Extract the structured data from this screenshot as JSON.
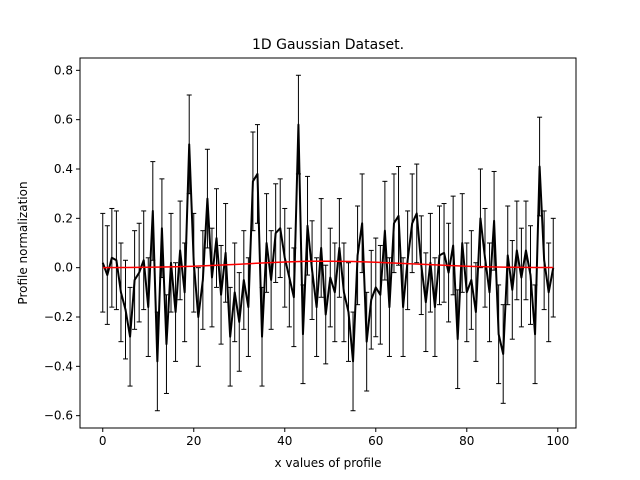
{
  "chart_data": {
    "type": "line",
    "title": "1D Gaussian Dataset.",
    "xlabel": "x values of profile",
    "ylabel": "Profile normalization",
    "xlim": [
      -5,
      104
    ],
    "ylim": [
      -0.65,
      0.85
    ],
    "xticks": [
      0,
      20,
      40,
      60,
      80,
      100
    ],
    "yticks": [
      -0.6,
      -0.4,
      -0.2,
      0.0,
      0.2,
      0.4,
      0.6,
      0.8
    ],
    "xtick_labels": [
      "0",
      "20",
      "40",
      "60",
      "80",
      "100"
    ],
    "ytick_labels": [
      "−0.6",
      "−0.4",
      "−0.2",
      "0.0",
      "0.2",
      "0.4",
      "0.6",
      "0.8"
    ],
    "grid": false,
    "colors": {
      "data": "#000000",
      "model": "#ff0000",
      "errorbar": "#000000"
    },
    "error": 0.2,
    "series": [
      {
        "role": "data",
        "x": [
          0,
          1,
          2,
          3,
          4,
          5,
          6,
          7,
          8,
          9,
          10,
          11,
          12,
          13,
          14,
          15,
          16,
          17,
          18,
          19,
          20,
          21,
          22,
          23,
          24,
          25,
          26,
          27,
          28,
          29,
          30,
          31,
          32,
          33,
          34,
          35,
          36,
          37,
          38,
          39,
          40,
          41,
          42,
          43,
          44,
          45,
          46,
          47,
          48,
          49,
          50,
          51,
          52,
          53,
          54,
          55,
          56,
          57,
          58,
          59,
          60,
          61,
          62,
          63,
          64,
          65,
          66,
          67,
          68,
          69,
          70,
          71,
          72,
          73,
          74,
          75,
          76,
          77,
          78,
          79,
          80,
          81,
          82,
          83,
          84,
          85,
          86,
          87,
          88,
          89,
          90,
          91,
          92,
          93,
          94,
          95,
          96,
          97,
          98,
          99
        ],
        "y": [
          0.02,
          -0.03,
          0.04,
          0.03,
          -0.1,
          -0.17,
          -0.28,
          -0.05,
          -0.02,
          0.03,
          -0.16,
          0.23,
          -0.38,
          0.16,
          -0.31,
          0.02,
          -0.18,
          0.07,
          -0.1,
          0.5,
          0.02,
          -0.2,
          -0.05,
          0.28,
          -0.04,
          0.12,
          -0.11,
          0.06,
          -0.28,
          -0.1,
          -0.22,
          -0.05,
          -0.16,
          0.35,
          0.38,
          -0.28,
          0.1,
          -0.05,
          0.14,
          0.16,
          0.04,
          -0.04,
          -0.12,
          0.58,
          -0.27,
          0.17,
          -0.01,
          -0.16,
          0.08,
          -0.19,
          -0.04,
          -0.1,
          0.08,
          -0.1,
          -0.18,
          -0.38,
          0.05,
          0.18,
          -0.3,
          -0.13,
          -0.08,
          -0.11,
          0.15,
          -0.16,
          0.18,
          0.21,
          -0.16,
          0.03,
          0.18,
          0.22,
          0.01,
          -0.14,
          0.02,
          -0.16,
          0.05,
          0.06,
          -0.02,
          0.09,
          -0.29,
          0.1,
          -0.1,
          -0.05,
          -0.18,
          0.2,
          0.04,
          -0.1,
          0.19,
          -0.27,
          -0.35,
          0.05,
          -0.09,
          0.07,
          -0.04,
          0.07,
          -0.03,
          -0.27,
          0.41,
          0.03,
          -0.1,
          0.0
        ],
        "error": [
          0.2,
          0.2,
          0.2,
          0.2,
          0.2,
          0.2,
          0.2,
          0.2,
          0.2,
          0.2,
          0.2,
          0.2,
          0.2,
          0.2,
          0.2,
          0.2,
          0.2,
          0.2,
          0.2,
          0.2,
          0.2,
          0.2,
          0.2,
          0.2,
          0.2,
          0.2,
          0.2,
          0.2,
          0.2,
          0.2,
          0.2,
          0.2,
          0.2,
          0.2,
          0.2,
          0.2,
          0.2,
          0.2,
          0.2,
          0.2,
          0.2,
          0.2,
          0.2,
          0.2,
          0.2,
          0.2,
          0.2,
          0.2,
          0.2,
          0.2,
          0.2,
          0.2,
          0.2,
          0.2,
          0.2,
          0.2,
          0.2,
          0.2,
          0.2,
          0.2,
          0.2,
          0.2,
          0.2,
          0.2,
          0.2,
          0.2,
          0.2,
          0.2,
          0.2,
          0.2,
          0.2,
          0.2,
          0.2,
          0.2,
          0.2,
          0.2,
          0.2,
          0.2,
          0.2,
          0.2,
          0.2,
          0.2,
          0.2,
          0.2,
          0.2,
          0.2,
          0.2,
          0.2,
          0.2,
          0.2,
          0.2,
          0.2,
          0.2,
          0.2,
          0.2,
          0.2,
          0.2,
          0.2,
          0.2,
          0.2
        ]
      },
      {
        "role": "model",
        "x": [
          0,
          5,
          10,
          15,
          20,
          25,
          30,
          35,
          40,
          45,
          50,
          55,
          60,
          65,
          70,
          75,
          80,
          85,
          90,
          95,
          99
        ],
        "y": [
          0.0,
          0.0005,
          0.0015,
          0.003,
          0.006,
          0.01,
          0.014,
          0.019,
          0.023,
          0.026,
          0.026,
          0.025,
          0.022,
          0.018,
          0.014,
          0.01,
          0.006,
          0.003,
          0.0015,
          0.0008,
          0.0005
        ]
      }
    ]
  }
}
